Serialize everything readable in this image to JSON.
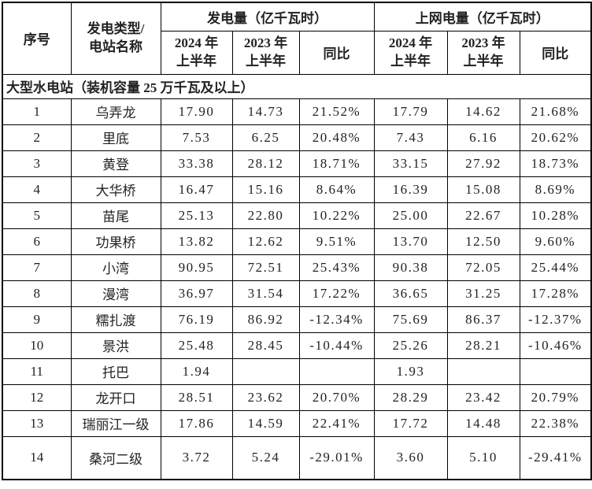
{
  "table": {
    "headers": {
      "seq": "序号",
      "type_name": "发电类型/\n电站名称",
      "generation_group": "发电量（亿千瓦时）",
      "grid_group": "上网电量（亿千瓦时）",
      "h2024": "2024 年\n上半年",
      "h2023": "2023 年\n上半年",
      "yoy": "同比"
    },
    "section_title": "大型水电站（装机容量 25 万千瓦及以上）",
    "rows": [
      {
        "seq": "1",
        "name": "乌弄龙",
        "gen_2024": "17.90",
        "gen_2023": "14.73",
        "gen_yoy": "21.52%",
        "grid_2024": "17.79",
        "grid_2023": "14.62",
        "grid_yoy": "21.68%"
      },
      {
        "seq": "2",
        "name": "里底",
        "gen_2024": "7.53",
        "gen_2023": "6.25",
        "gen_yoy": "20.48%",
        "grid_2024": "7.43",
        "grid_2023": "6.16",
        "grid_yoy": "20.62%"
      },
      {
        "seq": "3",
        "name": "黄登",
        "gen_2024": "33.38",
        "gen_2023": "28.12",
        "gen_yoy": "18.71%",
        "grid_2024": "33.15",
        "grid_2023": "27.92",
        "grid_yoy": "18.73%"
      },
      {
        "seq": "4",
        "name": "大华桥",
        "gen_2024": "16.47",
        "gen_2023": "15.16",
        "gen_yoy": "8.64%",
        "grid_2024": "16.39",
        "grid_2023": "15.08",
        "grid_yoy": "8.69%"
      },
      {
        "seq": "5",
        "name": "苗尾",
        "gen_2024": "25.13",
        "gen_2023": "22.80",
        "gen_yoy": "10.22%",
        "grid_2024": "25.00",
        "grid_2023": "22.67",
        "grid_yoy": "10.28%"
      },
      {
        "seq": "6",
        "name": "功果桥",
        "gen_2024": "13.82",
        "gen_2023": "12.62",
        "gen_yoy": "9.51%",
        "grid_2024": "13.70",
        "grid_2023": "12.50",
        "grid_yoy": "9.60%"
      },
      {
        "seq": "7",
        "name": "小湾",
        "gen_2024": "90.95",
        "gen_2023": "72.51",
        "gen_yoy": "25.43%",
        "grid_2024": "90.38",
        "grid_2023": "72.05",
        "grid_yoy": "25.44%"
      },
      {
        "seq": "8",
        "name": "漫湾",
        "gen_2024": "36.97",
        "gen_2023": "31.54",
        "gen_yoy": "17.22%",
        "grid_2024": "36.65",
        "grid_2023": "31.25",
        "grid_yoy": "17.28%"
      },
      {
        "seq": "9",
        "name": "糯扎渡",
        "gen_2024": "76.19",
        "gen_2023": "86.92",
        "gen_yoy": "-12.34%",
        "grid_2024": "75.69",
        "grid_2023": "86.37",
        "grid_yoy": "-12.37%"
      },
      {
        "seq": "10",
        "name": "景洪",
        "gen_2024": "25.48",
        "gen_2023": "28.45",
        "gen_yoy": "-10.44%",
        "grid_2024": "25.26",
        "grid_2023": "28.21",
        "grid_yoy": "-10.46%"
      },
      {
        "seq": "11",
        "name": "托巴",
        "gen_2024": "1.94",
        "gen_2023": "",
        "gen_yoy": "",
        "grid_2024": "1.93",
        "grid_2023": "",
        "grid_yoy": ""
      },
      {
        "seq": "12",
        "name": "龙开口",
        "gen_2024": "28.51",
        "gen_2023": "23.62",
        "gen_yoy": "20.70%",
        "grid_2024": "28.29",
        "grid_2023": "23.42",
        "grid_yoy": "20.79%"
      },
      {
        "seq": "13",
        "name": "瑞丽江一级",
        "gen_2024": "17.86",
        "gen_2023": "14.59",
        "gen_yoy": "22.41%",
        "grid_2024": "17.72",
        "grid_2023": "14.48",
        "grid_yoy": "22.38%"
      },
      {
        "seq": "14",
        "name": "桑河二级",
        "gen_2024": "3.72",
        "gen_2023": "5.24",
        "gen_yoy": "-29.01%",
        "grid_2024": "3.60",
        "grid_2023": "5.10",
        "grid_yoy": "-29.41%"
      }
    ]
  }
}
